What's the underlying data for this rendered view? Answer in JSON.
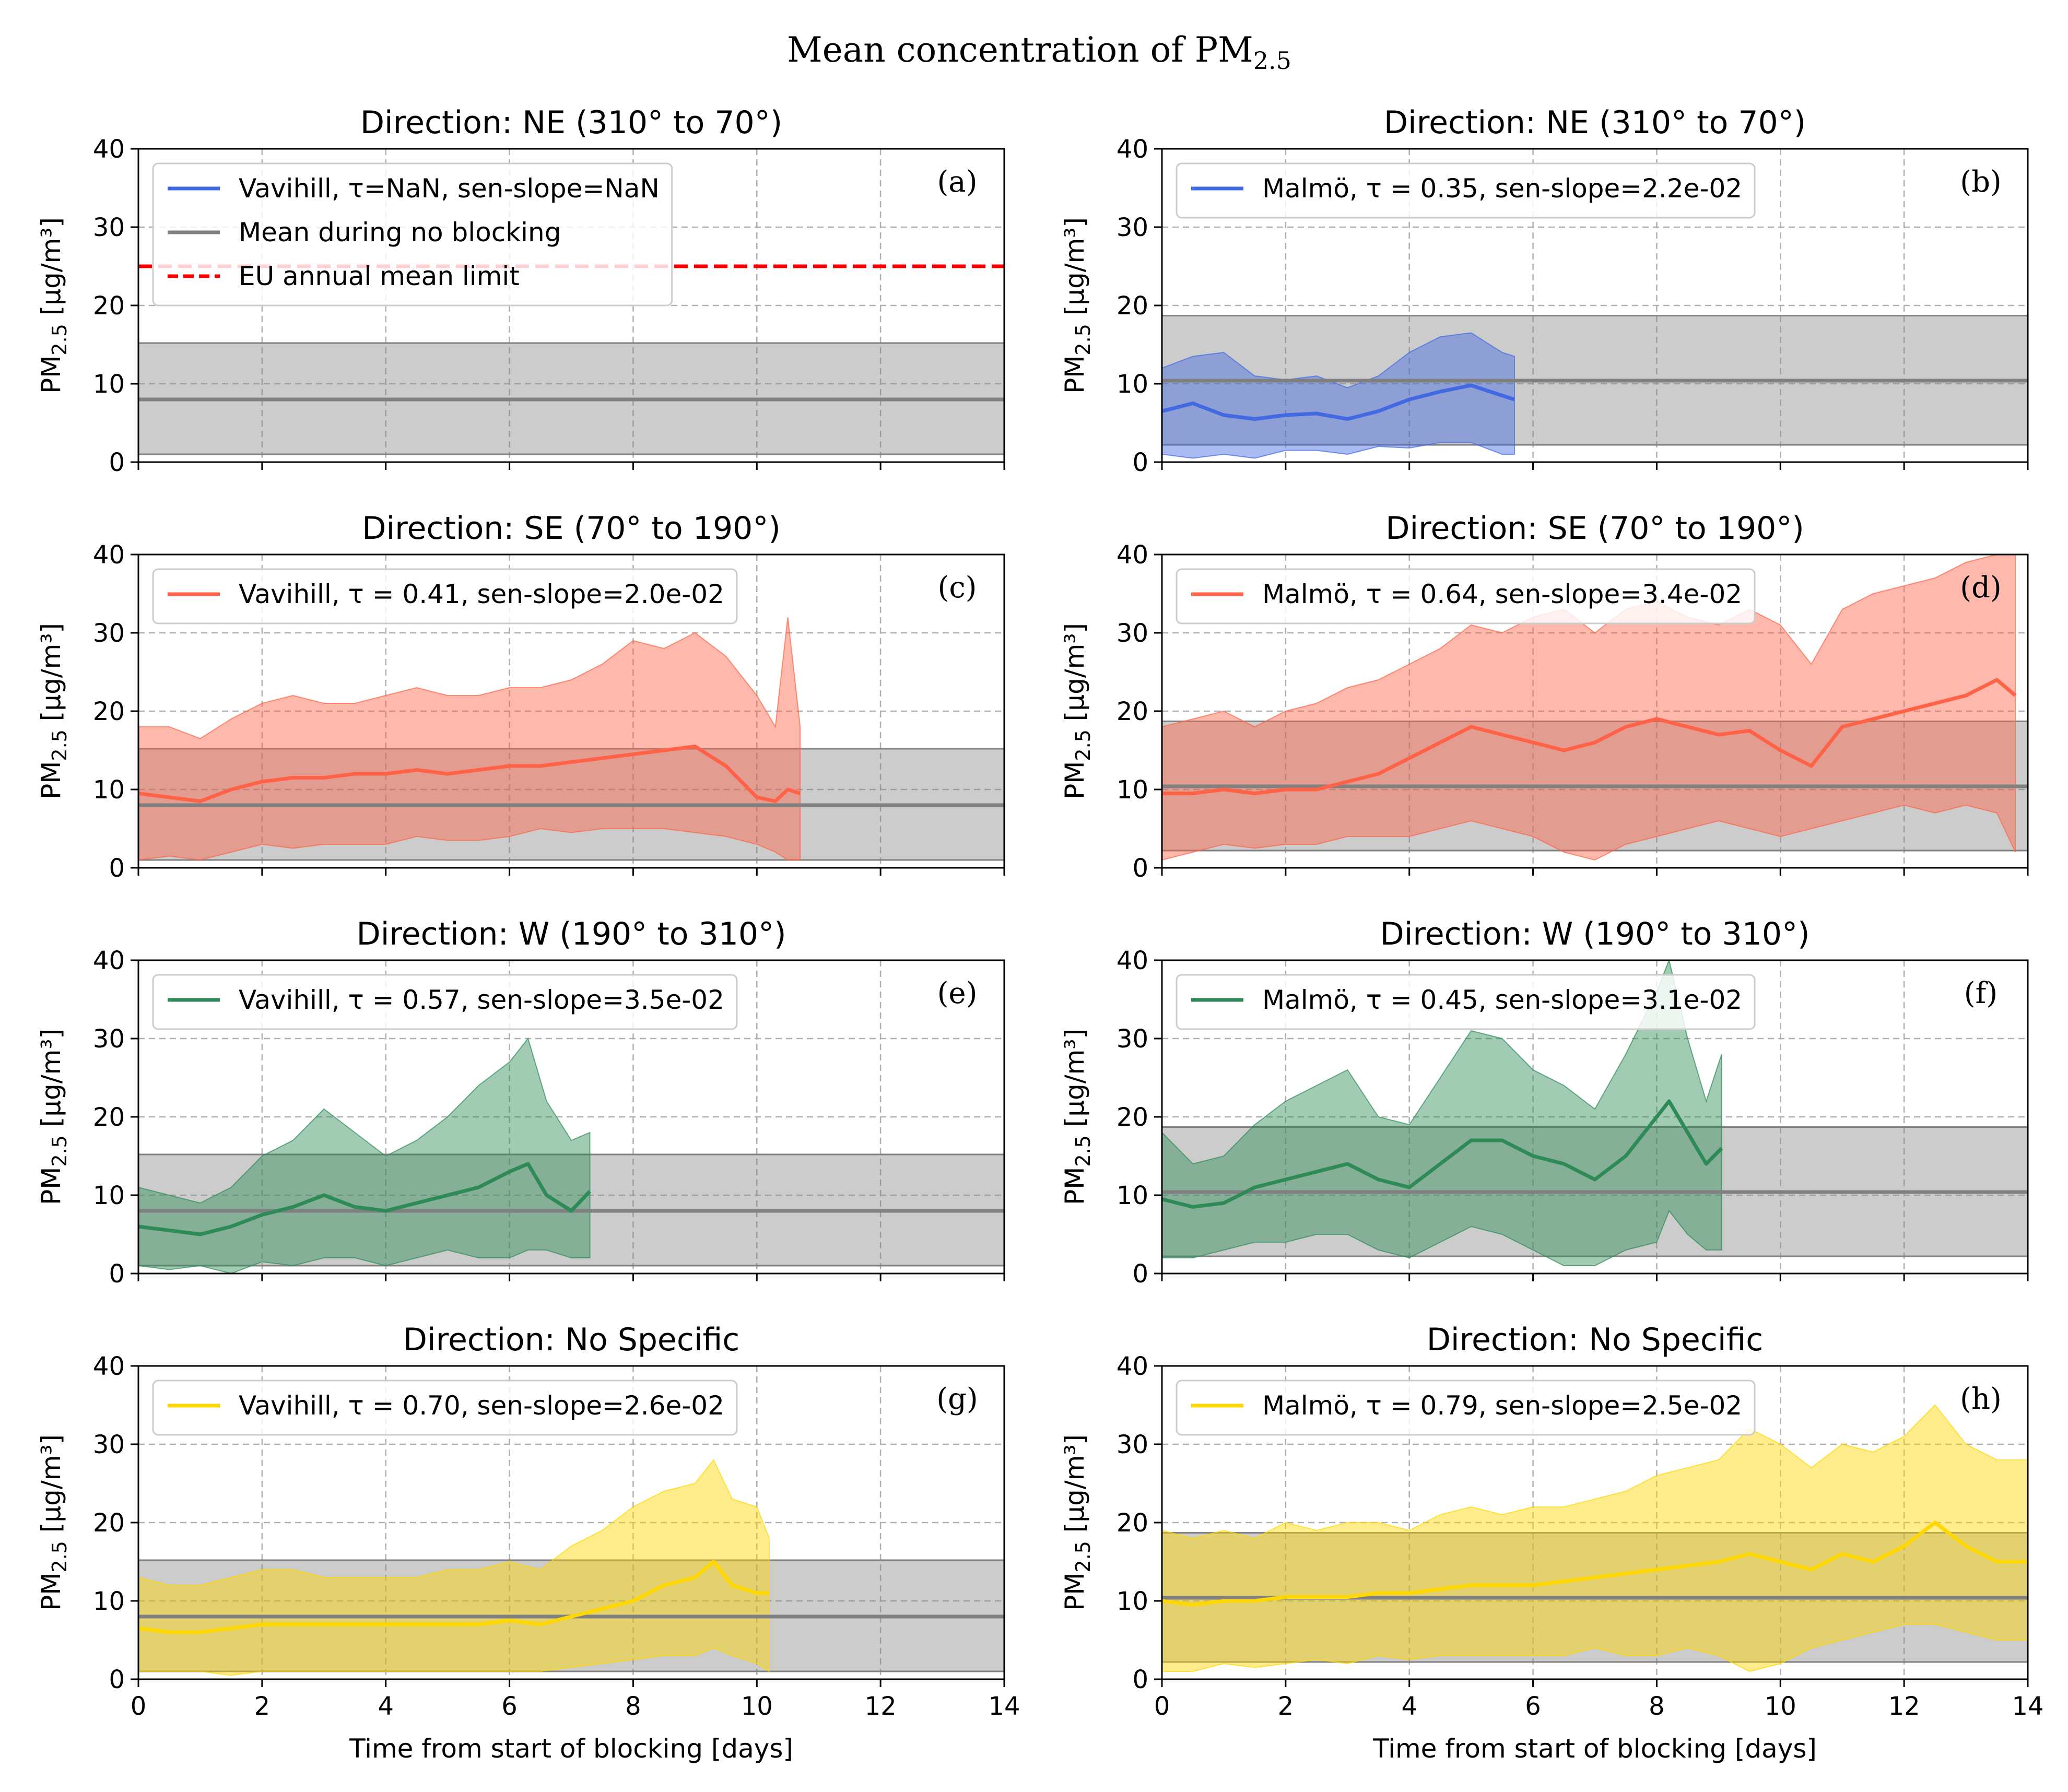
{
  "figure_title": "Mean concentration of PM",
  "figure_title_sub": "2.5",
  "colors": {
    "NE": "#4169e1",
    "SE": "#ff6347",
    "W": "#2e8b57",
    "No Specific": "#ffd700",
    "baseline": "#808080",
    "limit": "#ff0000"
  },
  "legend_labels": {
    "baseline": "Mean during no blocking",
    "limit": "EU annual mean limit"
  },
  "chart_data": [
    {
      "id": "a",
      "type": "line",
      "panel_label": "(a)",
      "title": "Direction: NE (310° to 70°)",
      "direction": "NE",
      "station": "Vavihill",
      "legend": "Vavihill, τ=NaN, sen-slope=NaN",
      "xlabel": "",
      "ylabel_main": "PM",
      "ylabel_sub": "2.5",
      "ylabel_unit": " [µg/m³]",
      "xlim": [
        0,
        14
      ],
      "ylim": [
        0,
        40
      ],
      "xticks": [
        0,
        2,
        4,
        6,
        8,
        10,
        12,
        14
      ],
      "yticks": [
        0,
        10,
        20,
        30,
        40
      ],
      "grid": true,
      "legend_position": "top-left",
      "show_baseline_legend": true,
      "baseline_mean": 8,
      "baseline_band": [
        1,
        15.2
      ],
      "limit": 25,
      "x": [],
      "mean": [],
      "lower": [],
      "upper": []
    },
    {
      "id": "b",
      "type": "line",
      "panel_label": "(b)",
      "title": "Direction: NE (310° to 70°)",
      "direction": "NE",
      "station": "Malmö",
      "legend": "Malmö, τ = 0.35, sen-slope=2.2e-02",
      "xlabel": "",
      "ylabel_main": "PM",
      "ylabel_sub": "2.5",
      "ylabel_unit": " [µg/m³]",
      "xlim": [
        0,
        14
      ],
      "ylim": [
        0,
        40
      ],
      "xticks": [
        0,
        2,
        4,
        6,
        8,
        10,
        12,
        14
      ],
      "yticks": [
        0,
        10,
        20,
        30,
        40
      ],
      "grid": true,
      "legend_position": "top-left",
      "show_baseline_legend": false,
      "baseline_mean": 10.4,
      "baseline_band": [
        2.2,
        18.7
      ],
      "x": [
        0,
        0.5,
        1,
        1.5,
        2,
        2.5,
        3,
        3.5,
        4,
        4.5,
        5,
        5.5,
        5.7
      ],
      "mean": [
        6.5,
        7.5,
        6,
        5.5,
        6,
        6.2,
        5.5,
        6.5,
        8,
        9,
        9.8,
        8.5,
        8
      ],
      "lower": [
        1,
        0.5,
        1,
        0.5,
        1.5,
        1.5,
        1,
        2,
        1.8,
        2.5,
        2.5,
        1,
        1
      ],
      "upper": [
        12,
        13.5,
        14,
        11,
        10.5,
        11,
        9.5,
        11,
        14,
        16,
        16.5,
        14,
        13.5
      ]
    },
    {
      "id": "c",
      "type": "line",
      "panel_label": "(c)",
      "title": "Direction: SE (70° to 190°)",
      "direction": "SE",
      "station": "Vavihill",
      "legend": "Vavihill, τ = 0.41, sen-slope=2.0e-02",
      "xlabel": "",
      "ylabel_main": "PM",
      "ylabel_sub": "2.5",
      "ylabel_unit": " [µg/m³]",
      "xlim": [
        0,
        14
      ],
      "ylim": [
        0,
        40
      ],
      "xticks": [
        0,
        2,
        4,
        6,
        8,
        10,
        12,
        14
      ],
      "yticks": [
        0,
        10,
        20,
        30,
        40
      ],
      "grid": true,
      "legend_position": "top-left",
      "show_baseline_legend": false,
      "baseline_mean": 8,
      "baseline_band": [
        1,
        15.2
      ],
      "x": [
        0,
        0.5,
        1,
        1.5,
        2,
        2.5,
        3,
        3.5,
        4,
        4.5,
        5,
        5.5,
        6,
        6.5,
        7,
        7.5,
        8,
        8.5,
        9,
        9.5,
        10,
        10.3,
        10.5,
        10.7
      ],
      "mean": [
        9.5,
        9,
        8.5,
        10,
        11,
        11.5,
        11.5,
        12,
        12,
        12.5,
        12,
        12.5,
        13,
        13,
        13.5,
        14,
        14.5,
        15,
        15.5,
        13,
        9,
        8.5,
        10,
        9.5
      ],
      "lower": [
        1,
        1.5,
        1,
        2,
        3,
        2.5,
        3,
        3,
        3,
        4,
        3.5,
        3.5,
        4,
        5,
        4.5,
        5,
        5,
        5,
        4.5,
        4,
        3,
        2,
        1,
        1
      ],
      "upper": [
        18,
        18,
        16.5,
        19,
        21,
        22,
        21,
        21,
        22,
        23,
        22,
        22,
        23,
        23,
        24,
        26,
        29,
        28,
        30,
        27,
        22,
        18,
        32,
        18
      ]
    },
    {
      "id": "d",
      "type": "line",
      "panel_label": "(d)",
      "title": "Direction: SE (70° to 190°)",
      "direction": "SE",
      "station": "Malmö",
      "legend": "Malmö, τ = 0.64, sen-slope=3.4e-02",
      "xlabel": "",
      "ylabel_main": "PM",
      "ylabel_sub": "2.5",
      "ylabel_unit": " [µg/m³]",
      "xlim": [
        0,
        14
      ],
      "ylim": [
        0,
        40
      ],
      "xticks": [
        0,
        2,
        4,
        6,
        8,
        10,
        12,
        14
      ],
      "yticks": [
        0,
        10,
        20,
        30,
        40
      ],
      "grid": true,
      "legend_position": "top-left",
      "show_baseline_legend": false,
      "baseline_mean": 10.4,
      "baseline_band": [
        2.2,
        18.7
      ],
      "x": [
        0,
        0.5,
        1,
        1.5,
        2,
        2.5,
        3,
        3.5,
        4,
        4.5,
        5,
        5.5,
        6,
        6.5,
        7,
        7.5,
        8,
        8.5,
        9,
        9.5,
        10,
        10.5,
        11,
        11.5,
        12,
        12.5,
        13,
        13.5,
        13.8
      ],
      "mean": [
        9.5,
        9.5,
        10,
        9.5,
        10,
        10,
        11,
        12,
        14,
        16,
        18,
        17,
        16,
        15,
        16,
        18,
        19,
        18,
        17,
        17.5,
        15,
        13,
        18,
        19,
        20,
        21,
        22,
        24,
        22
      ],
      "lower": [
        1,
        2,
        3,
        2.5,
        3,
        3,
        4,
        4,
        4,
        5,
        6,
        5,
        4,
        2,
        1,
        3,
        4,
        5,
        6,
        5,
        4,
        5,
        6,
        7,
        8,
        7,
        8,
        7,
        2
      ],
      "upper": [
        18,
        19,
        20,
        18,
        20,
        21,
        23,
        24,
        26,
        28,
        31,
        30,
        32,
        33,
        30,
        33,
        34,
        32,
        31,
        33,
        31,
        26,
        33,
        35,
        36,
        37,
        39,
        40,
        40
      ]
    },
    {
      "id": "e",
      "type": "line",
      "panel_label": "(e)",
      "title": "Direction: W (190° to 310°)",
      "direction": "W",
      "station": "Vavihill",
      "legend": "Vavihill, τ = 0.57, sen-slope=3.5e-02",
      "xlabel": "",
      "ylabel_main": "PM",
      "ylabel_sub": "2.5",
      "ylabel_unit": " [µg/m³]",
      "xlim": [
        0,
        14
      ],
      "ylim": [
        0,
        40
      ],
      "xticks": [
        0,
        2,
        4,
        6,
        8,
        10,
        12,
        14
      ],
      "yticks": [
        0,
        10,
        20,
        30,
        40
      ],
      "grid": true,
      "legend_position": "top-left",
      "show_baseline_legend": false,
      "baseline_mean": 8,
      "baseline_band": [
        1,
        15.2
      ],
      "x": [
        0,
        0.5,
        1,
        1.5,
        2,
        2.5,
        3,
        3.5,
        4,
        4.5,
        5,
        5.5,
        6,
        6.3,
        6.6,
        7,
        7.3
      ],
      "mean": [
        6,
        5.5,
        5,
        6,
        7.5,
        8.5,
        10,
        8.5,
        8,
        9,
        10,
        11,
        13,
        14,
        10,
        8,
        10.5
      ],
      "lower": [
        1,
        0.5,
        1,
        0,
        1.5,
        1,
        2,
        2,
        1,
        2,
        3,
        2,
        2,
        3,
        3,
        2,
        2
      ],
      "upper": [
        11,
        10,
        9,
        11,
        15,
        17,
        21,
        18,
        15,
        17,
        20,
        24,
        27,
        30,
        22,
        17,
        18
      ]
    },
    {
      "id": "f",
      "type": "line",
      "panel_label": "(f)",
      "title": "Direction: W (190° to 310°)",
      "direction": "W",
      "station": "Malmö",
      "legend": "Malmö, τ = 0.45, sen-slope=3.1e-02",
      "xlabel": "",
      "ylabel_main": "PM",
      "ylabel_sub": "2.5",
      "ylabel_unit": " [µg/m³]",
      "xlim": [
        0,
        14
      ],
      "ylim": [
        0,
        40
      ],
      "xticks": [
        0,
        2,
        4,
        6,
        8,
        10,
        12,
        14
      ],
      "yticks": [
        0,
        10,
        20,
        30,
        40
      ],
      "grid": true,
      "legend_position": "top-left",
      "show_baseline_legend": false,
      "baseline_mean": 10.4,
      "baseline_band": [
        2.2,
        18.7
      ],
      "x": [
        0,
        0.5,
        1,
        1.5,
        2,
        2.5,
        3,
        3.5,
        4,
        4.5,
        5,
        5.5,
        6,
        6.5,
        7,
        7.5,
        8,
        8.2,
        8.5,
        8.8,
        9.05
      ],
      "mean": [
        9.5,
        8.5,
        9,
        11,
        12,
        13,
        14,
        12,
        11,
        14,
        17,
        17,
        15,
        14,
        12,
        15,
        20,
        22,
        18,
        14,
        16
      ],
      "lower": [
        2,
        2,
        3,
        4,
        4,
        5,
        5,
        3,
        2,
        4,
        6,
        5,
        3,
        1,
        1,
        3,
        4,
        8,
        5,
        3,
        3
      ],
      "upper": [
        18,
        14,
        15,
        19,
        22,
        24,
        26,
        20,
        19,
        25,
        31,
        30,
        26,
        24,
        21,
        28,
        36,
        40,
        30,
        22,
        28
      ]
    },
    {
      "id": "g",
      "type": "line",
      "panel_label": "(g)",
      "title": "Direction: No Specific",
      "direction": "No Specific",
      "station": "Vavihill",
      "legend": "Vavihill, τ = 0.70, sen-slope=2.6e-02",
      "xlabel": "Time from start of blocking [days]",
      "ylabel_main": "PM",
      "ylabel_sub": "2.5",
      "ylabel_unit": " [µg/m³]",
      "xlim": [
        0,
        14
      ],
      "ylim": [
        0,
        40
      ],
      "xticks": [
        0,
        2,
        4,
        6,
        8,
        10,
        12,
        14
      ],
      "yticks": [
        0,
        10,
        20,
        30,
        40
      ],
      "grid": true,
      "legend_position": "top-left",
      "show_baseline_legend": false,
      "baseline_mean": 8,
      "baseline_band": [
        1,
        15.2
      ],
      "x": [
        0,
        0.5,
        1,
        1.5,
        2,
        2.5,
        3,
        3.5,
        4,
        4.5,
        5,
        5.5,
        6,
        6.5,
        7,
        7.5,
        8,
        8.5,
        9,
        9.3,
        9.6,
        10,
        10.2
      ],
      "mean": [
        6.5,
        6,
        6,
        6.5,
        7,
        7,
        7,
        7,
        7,
        7,
        7,
        7,
        7.5,
        7,
        8,
        9,
        10,
        12,
        13,
        15,
        12,
        11,
        11
      ],
      "lower": [
        1,
        1,
        1,
        0.5,
        1,
        1,
        1,
        1,
        1,
        1,
        1,
        1,
        1,
        1,
        1.5,
        2,
        2.5,
        3,
        3,
        4,
        3,
        2,
        1
      ],
      "upper": [
        13,
        12,
        12,
        13,
        14,
        14,
        13,
        13,
        13,
        13,
        14,
        14,
        15,
        14,
        17,
        19,
        22,
        24,
        25,
        28,
        23,
        22,
        18
      ]
    },
    {
      "id": "h",
      "type": "line",
      "panel_label": "(h)",
      "title": "Direction: No Specific",
      "direction": "No Specific",
      "station": "Malmö",
      "legend": "Malmö, τ = 0.79, sen-slope=2.5e-02",
      "xlabel": "Time from start of blocking [days]",
      "ylabel_main": "PM",
      "ylabel_sub": "2.5",
      "ylabel_unit": " [µg/m³]",
      "xlim": [
        0,
        14
      ],
      "ylim": [
        0,
        40
      ],
      "xticks": [
        0,
        2,
        4,
        6,
        8,
        10,
        12,
        14
      ],
      "yticks": [
        0,
        10,
        20,
        30,
        40
      ],
      "grid": true,
      "legend_position": "top-left",
      "show_baseline_legend": false,
      "baseline_mean": 10.4,
      "baseline_band": [
        2.2,
        18.7
      ],
      "x": [
        0,
        0.5,
        1,
        1.5,
        2,
        2.5,
        3,
        3.5,
        4,
        4.5,
        5,
        5.5,
        6,
        6.5,
        7,
        7.5,
        8,
        8.5,
        9,
        9.5,
        10,
        10.5,
        11,
        11.5,
        12,
        12.5,
        13,
        13.5,
        14
      ],
      "mean": [
        10,
        9.5,
        10,
        10,
        10.5,
        10.5,
        10.5,
        11,
        11,
        11.5,
        12,
        12,
        12,
        12.5,
        13,
        13.5,
        14,
        14.5,
        15,
        16,
        15,
        14,
        16,
        15,
        17,
        20,
        17,
        15,
        15
      ],
      "lower": [
        1,
        1,
        2,
        1.5,
        2,
        2.5,
        2,
        3,
        2.5,
        3,
        3,
        3,
        3,
        3,
        4,
        3,
        3,
        4,
        3,
        1,
        2,
        4,
        5,
        6,
        7,
        7,
        6,
        5,
        5
      ],
      "upper": [
        19,
        18,
        19,
        18,
        20,
        19,
        20,
        20,
        19,
        21,
        22,
        21,
        22,
        22,
        23,
        24,
        26,
        27,
        28,
        32,
        30,
        27,
        30,
        29,
        31,
        35,
        30,
        28,
        28
      ]
    }
  ]
}
